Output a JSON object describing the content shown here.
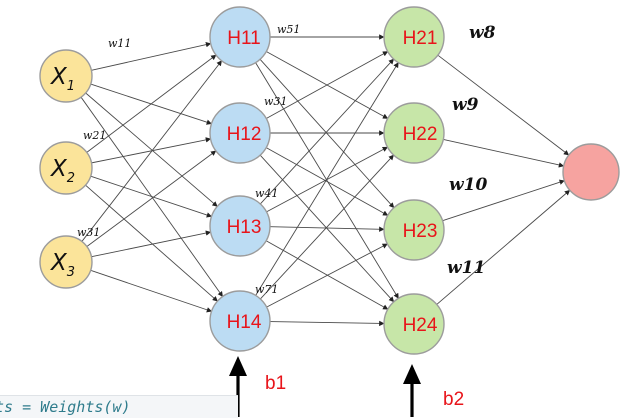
{
  "diagram": {
    "inputs": [
      {
        "main": "X",
        "sub": "1"
      },
      {
        "main": "X",
        "sub": "2"
      },
      {
        "main": "X",
        "sub": "3"
      }
    ],
    "hidden1": [
      "H11",
      "H12",
      "H13",
      "H14"
    ],
    "hidden2": [
      "H21",
      "H22",
      "H23",
      "H24"
    ],
    "output": [
      ""
    ],
    "weights": {
      "w11": "w11",
      "w21": "w21",
      "w31": "w31",
      "w51": "w51",
      "w61": "w31",
      "w91": "w41",
      "w71": "w71",
      "w8": "w8",
      "w9": "w9",
      "w10": "w10",
      "w11b": "w11"
    },
    "bias": {
      "b1": "b1",
      "b2": "b2"
    }
  },
  "code_snippet": "nts = Weights(w)",
  "colors": {
    "input_fill": "#fbe49a",
    "hidden1_fill": "#bcdcf3",
    "hidden2_fill": "#c7e6a8",
    "output_fill": "#f6a3a0",
    "label_red": "#e8141a"
  }
}
